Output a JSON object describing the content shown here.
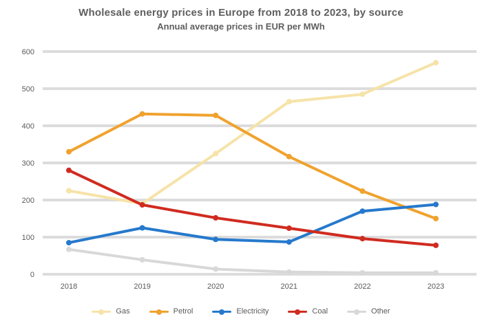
{
  "chart_data": {
    "type": "line",
    "title": "Wholesale energy prices in Europe from 2018 to 2023, by source",
    "subtitle": "Annual average prices in EUR per MWh",
    "categories": [
      "2018",
      "2019",
      "2020",
      "2021",
      "2022",
      "2023"
    ],
    "series": [
      {
        "name": "Gas",
        "color": "#F6E3A8",
        "values": [
          225,
          190,
          325,
          465,
          485,
          570
        ]
      },
      {
        "name": "Petrol",
        "color": "#F0A22E",
        "values": [
          330,
          432,
          428,
          317,
          224,
          150
        ]
      },
      {
        "name": "Electricity",
        "color": "#2679CC",
        "values": [
          85,
          125,
          94,
          87,
          170,
          188
        ]
      },
      {
        "name": "Coal",
        "color": "#D02B20",
        "values": [
          280,
          187,
          152,
          124,
          96,
          78
        ]
      },
      {
        "name": "Other",
        "color": "#D8D8D8",
        "values": [
          67,
          39,
          14,
          6,
          4,
          4
        ]
      }
    ],
    "xlabel": "",
    "ylabel": "",
    "ylim": [
      0,
      600
    ],
    "y_ticks": [
      0,
      100,
      200,
      300,
      400,
      500,
      600
    ],
    "grid": "horizontal",
    "grid_color": "#DCDCDC",
    "axis_text_color": "#595959",
    "background_color": "#FFFFFF",
    "legend_position": "bottom",
    "markers": true
  }
}
